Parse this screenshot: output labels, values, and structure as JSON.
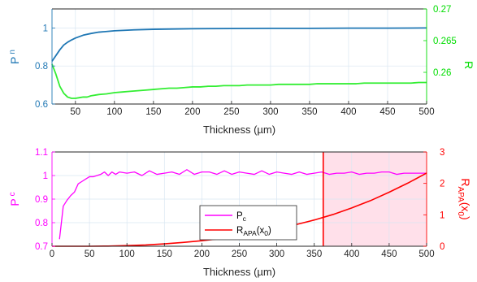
{
  "colors": {
    "pn": "#1f77b4",
    "r": "#00dd00",
    "r_line": "#33ee33",
    "pc": "#ff00ff",
    "rapa": "#ff0000",
    "shade": "#ffe0ea",
    "axis_x": "#262626",
    "grid": "#d9e6f2"
  },
  "chart_data": [
    {
      "type": "line",
      "title": "",
      "xlabel": "Thickness (µm)",
      "ylabel_left": "P",
      "ylabel_left_sub": "n",
      "ylabel_right": "R",
      "xlim": [
        20,
        500
      ],
      "ylim_left": [
        0.6,
        1.1
      ],
      "ylim_right": [
        0.255,
        0.27
      ],
      "xticks": [
        50,
        100,
        150,
        200,
        250,
        300,
        350,
        400,
        450,
        500
      ],
      "xtick_labels": [
        "50",
        "100",
        "150",
        "200",
        "250",
        "300",
        "350",
        "400",
        "450",
        "500"
      ],
      "yticks_left": [
        0.6,
        0.8,
        1
      ],
      "ytick_labels_left": [
        "0.6",
        "0.8",
        "1"
      ],
      "yticks_right": [
        0.26,
        0.265,
        0.27
      ],
      "ytick_labels_right": [
        "0.26",
        "0.265",
        "0.27"
      ],
      "grid": true,
      "series": [
        {
          "axis": "left",
          "x": [
            20,
            25,
            30,
            35,
            40,
            45,
            50,
            60,
            70,
            80,
            100,
            125,
            150,
            200,
            250,
            300,
            350,
            400,
            450,
            500
          ],
          "values": [
            0.825,
            0.855,
            0.885,
            0.91,
            0.925,
            0.937,
            0.947,
            0.962,
            0.971,
            0.978,
            0.985,
            0.99,
            0.993,
            0.996,
            0.997,
            0.998,
            0.998,
            0.999,
            0.999,
            1.0
          ]
        },
        {
          "axis": "right",
          "x": [
            20,
            25,
            30,
            35,
            40,
            45,
            50,
            55,
            60,
            65,
            70,
            80,
            90,
            100,
            110,
            120,
            130,
            140,
            150,
            160,
            170,
            180,
            190,
            200,
            210,
            220,
            230,
            240,
            250,
            260,
            270,
            280,
            290,
            300,
            310,
            320,
            330,
            340,
            350,
            360,
            370,
            380,
            390,
            400,
            410,
            420,
            430,
            440,
            450,
            460,
            470,
            480,
            490,
            500
          ],
          "values": [
            0.2613,
            0.2597,
            0.2578,
            0.2567,
            0.2561,
            0.2559,
            0.2559,
            0.256,
            0.2561,
            0.2561,
            0.2563,
            0.2565,
            0.2566,
            0.2568,
            0.2569,
            0.257,
            0.2571,
            0.2572,
            0.2573,
            0.2574,
            0.2575,
            0.2575,
            0.2576,
            0.2577,
            0.2577,
            0.2578,
            0.2578,
            0.2579,
            0.2579,
            0.2579,
            0.258,
            0.258,
            0.258,
            0.258,
            0.2581,
            0.2581,
            0.2581,
            0.2581,
            0.2581,
            0.2582,
            0.2582,
            0.2582,
            0.2582,
            0.2582,
            0.2582,
            0.2583,
            0.2583,
            0.2583,
            0.2583,
            0.2583,
            0.2583,
            0.2583,
            0.2584,
            0.2584
          ]
        }
      ]
    },
    {
      "type": "line",
      "title": "",
      "xlabel": "Thickness (µm)",
      "ylabel_left": "P",
      "ylabel_left_sub": "c",
      "ylabel_right": "R",
      "ylabel_right_sub": "APA",
      "ylabel_right_suffix": "(x",
      "ylabel_right_sub2": "0",
      "ylabel_right_end": ")",
      "xlim": [
        0,
        500
      ],
      "ylim_left": [
        0.7,
        1.1
      ],
      "ylim_right": [
        0,
        3
      ],
      "xticks": [
        0,
        50,
        100,
        150,
        200,
        250,
        300,
        350,
        400,
        450,
        500
      ],
      "xtick_labels": [
        "0",
        "50",
        "100",
        "150",
        "200",
        "250",
        "300",
        "350",
        "400",
        "450",
        "500"
      ],
      "yticks_left": [
        0.7,
        0.8,
        0.9,
        1.0,
        1.1
      ],
      "ytick_labels_left": [
        "0.7",
        "0.8",
        "0.9",
        "1",
        "1.1"
      ],
      "yticks_right": [
        0,
        1,
        2,
        3
      ],
      "ytick_labels_right": [
        "0",
        "1",
        "2",
        "3"
      ],
      "grid": true,
      "legend_position": "center",
      "shaded_region_x": [
        362,
        500
      ],
      "vline_x": 362,
      "series": [
        {
          "name": "P",
          "name_sub": "c",
          "axis": "left",
          "x": [
            10,
            15,
            20,
            25,
            30,
            35,
            40,
            45,
            50,
            55,
            60,
            65,
            70,
            75,
            80,
            85,
            90,
            100,
            110,
            120,
            130,
            140,
            150,
            160,
            170,
            180,
            190,
            200,
            210,
            220,
            230,
            240,
            250,
            260,
            270,
            280,
            290,
            300,
            310,
            320,
            330,
            340,
            350,
            360,
            370,
            380,
            390,
            400,
            410,
            420,
            430,
            440,
            450,
            460,
            470,
            480,
            490,
            500
          ],
          "values": [
            0.73,
            0.87,
            0.895,
            0.915,
            0.93,
            0.965,
            0.975,
            0.985,
            0.995,
            0.995,
            1.0,
            1.005,
            1.015,
            1.0,
            1.015,
            1.005,
            1.015,
            1.01,
            1.015,
            1.0,
            1.02,
            1.005,
            1.01,
            1.015,
            1.005,
            1.025,
            1.005,
            1.015,
            1.015,
            1.005,
            1.02,
            1.005,
            1.015,
            1.01,
            1.005,
            1.02,
            1.005,
            1.015,
            1.01,
            1.005,
            1.015,
            1.005,
            1.01,
            1.015,
            1.005,
            1.01,
            1.01,
            1.015,
            1.005,
            1.01,
            1.01,
            1.015,
            1.015,
            1.005,
            1.01,
            1.01,
            1.01,
            1.01
          ]
        },
        {
          "name": "R",
          "name_sub": "APA",
          "name_suffix": "(x",
          "name_sub2": "0",
          "name_end": ")",
          "axis": "right",
          "x": [
            0,
            25,
            50,
            75,
            100,
            125,
            150,
            175,
            200,
            225,
            250,
            275,
            300,
            325,
            350,
            375,
            400,
            425,
            450,
            475,
            500
          ],
          "values": [
            0.0,
            0.0,
            0.0,
            0.005,
            0.02,
            0.04,
            0.075,
            0.12,
            0.175,
            0.245,
            0.33,
            0.43,
            0.55,
            0.685,
            0.835,
            1.01,
            1.22,
            1.45,
            1.72,
            2.01,
            2.33
          ]
        }
      ]
    }
  ]
}
